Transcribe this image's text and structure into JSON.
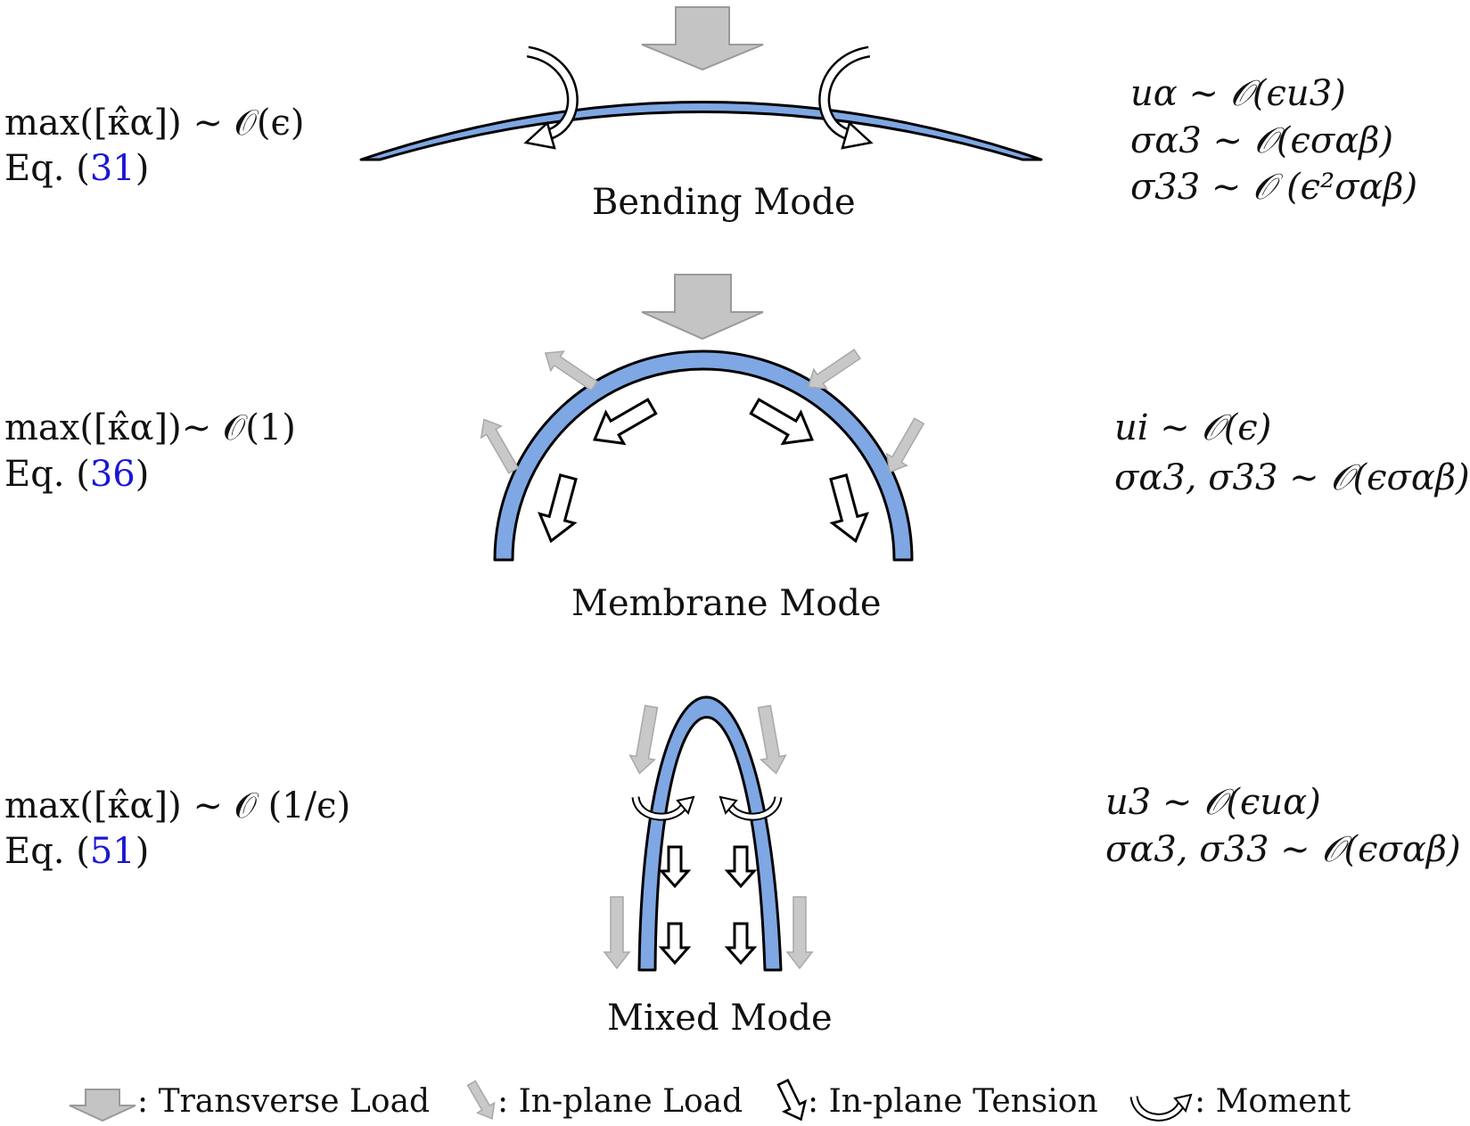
{
  "colors": {
    "shell_fill": "#7fa7e3",
    "shell_stroke": "#000000",
    "transverse_load": "#c4c4c4",
    "inplane_load": "#c8c8c8",
    "tension_fill": "#ffffff",
    "eq_ref": "#1b17d6"
  },
  "modes": {
    "bending": {
      "caption": "Bending Mode",
      "condition": "max([κ̂α]) ∼ 𝒪(ϵ)",
      "eq_prefix": "Eq. (",
      "eq_ref": "31",
      "eq_suffix": ")",
      "scaling": [
        "uα ∼ 𝒪(ϵu3)",
        "σα3 ∼ 𝒪(ϵσαβ)",
        "σ33 ∼ 𝒪 (ϵ²σαβ)"
      ]
    },
    "membrane": {
      "caption": "Membrane Mode",
      "condition": "max([κ̂α])∼ 𝒪(1)",
      "eq_prefix": "Eq. (",
      "eq_ref": "36",
      "eq_suffix": ")",
      "scaling": [
        "ui ∼ 𝒪(ϵ)",
        "σα3, σ33 ∼ 𝒪(ϵσαβ)"
      ]
    },
    "mixed": {
      "caption": "Mixed Mode",
      "condition": "max([κ̂α]) ∼ 𝒪 (1/ϵ)",
      "eq_prefix": "Eq. (",
      "eq_ref": "51",
      "eq_suffix": ")",
      "scaling": [
        "u3 ∼ 𝒪(ϵuα)",
        "σα3, σ33 ∼ 𝒪(ϵσαβ)"
      ]
    }
  },
  "legend": {
    "transverse": ": Transverse Load",
    "inplane_load": ": In-plane Load",
    "inplane_tension": ": In-plane Tension",
    "moment": ": Moment"
  }
}
